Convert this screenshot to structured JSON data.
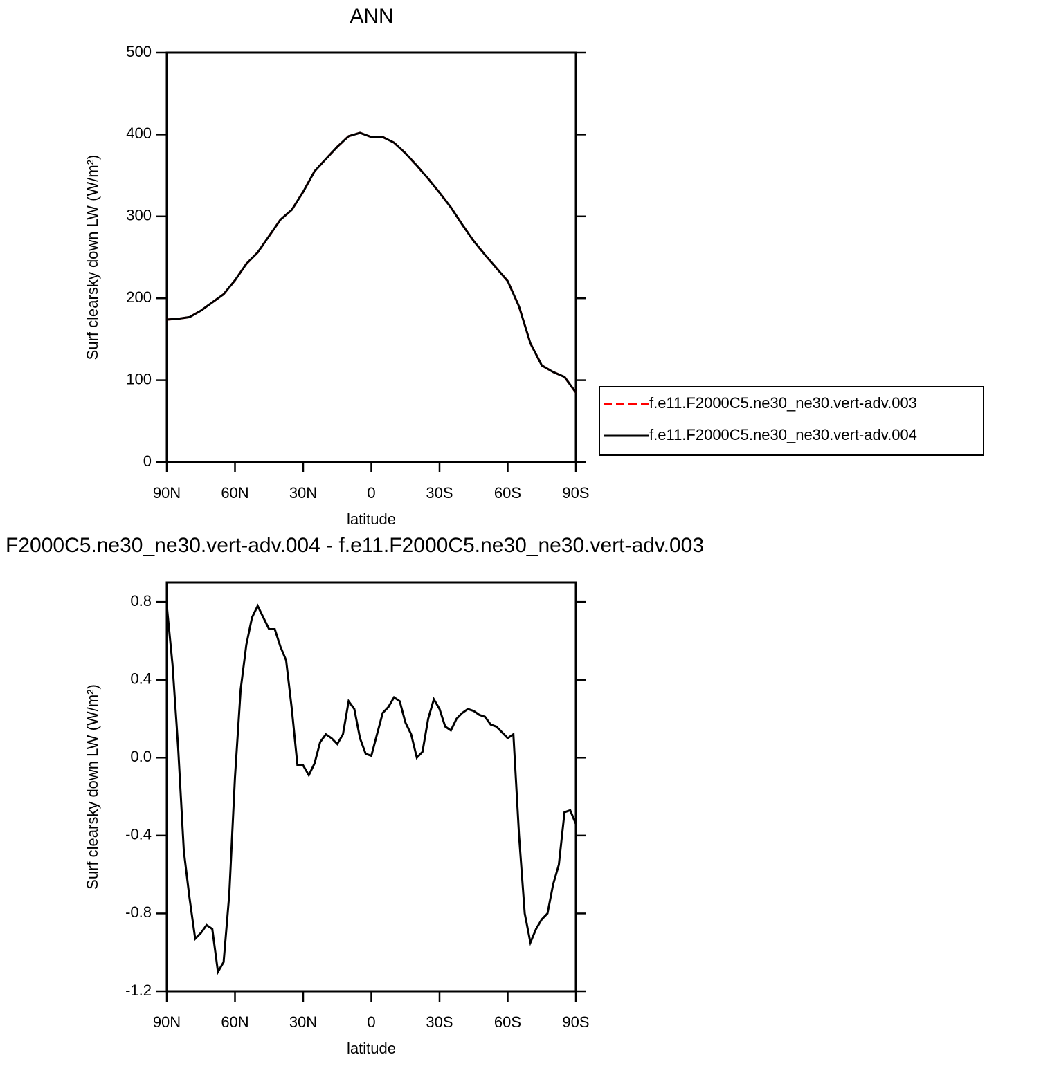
{
  "chart_data": [
    {
      "type": "line",
      "title": "ANN",
      "x_label": "latitude",
      "y_label": "Surf clearsky down LW (W/m²)",
      "xlim": [
        90,
        -90
      ],
      "ylim": [
        0,
        500
      ],
      "xticks": [
        {
          "value": 90,
          "label": "90N"
        },
        {
          "value": 60,
          "label": "60N"
        },
        {
          "value": 30,
          "label": "30N"
        },
        0,
        {
          "value": -30,
          "label": "30S"
        },
        {
          "value": -60,
          "label": "60S"
        },
        {
          "value": -90,
          "label": "90S"
        }
      ],
      "yticks": [
        0,
        100,
        200,
        300,
        400,
        500
      ],
      "legend": "right",
      "x": [
        90,
        85,
        80,
        75,
        70,
        65,
        60,
        55,
        50,
        45,
        40,
        35,
        30,
        25,
        20,
        15,
        10,
        5,
        0,
        -5,
        -10,
        -15,
        -20,
        -25,
        -30,
        -35,
        -40,
        -45,
        -50,
        -55,
        -60,
        -65,
        -70,
        -75,
        -80,
        -85,
        -90
      ],
      "series": [
        {
          "name": "f.e11.F2000C5.ne30_ne30.vert-adv.003",
          "color": "#ff0000",
          "linestyle": "dashed",
          "values": [
            174,
            175,
            177,
            185,
            195,
            205,
            222,
            242,
            256,
            276,
            296,
            308,
            330,
            355,
            370,
            385,
            398,
            402,
            397,
            397,
            390,
            377,
            362,
            346,
            329,
            311,
            290,
            270,
            253,
            237,
            221,
            190,
            145,
            118,
            110,
            104,
            85
          ]
        },
        {
          "name": "f.e11.F2000C5.ne30_ne30.vert-adv.004",
          "color": "#000000",
          "linestyle": "solid",
          "values": [
            174,
            175,
            177,
            185,
            195,
            205,
            222,
            242,
            256,
            276,
            296,
            308,
            330,
            355,
            370,
            385,
            398,
            402,
            397,
            397,
            390,
            377,
            362,
            346,
            329,
            311,
            290,
            270,
            253,
            237,
            221,
            190,
            145,
            118,
            110,
            104,
            85
          ]
        }
      ]
    },
    {
      "type": "line",
      "title": "F2000C5.ne30_ne30.vert-adv.004 - f.e11.F2000C5.ne30_ne30.vert-adv.003",
      "x_label": "latitude",
      "y_label": "Surf clearsky down LW (W/m²)",
      "xlim": [
        90,
        -90
      ],
      "ylim": [
        -1.2,
        0.9
      ],
      "xticks": [
        {
          "value": 90,
          "label": "90N"
        },
        {
          "value": 60,
          "label": "60N"
        },
        {
          "value": 30,
          "label": "30N"
        },
        0,
        {
          "value": -30,
          "label": "30S"
        },
        {
          "value": -60,
          "label": "60S"
        },
        {
          "value": -90,
          "label": "90S"
        }
      ],
      "yticks": [
        -1.2,
        -0.8,
        -0.4,
        {
          "value": 0,
          "label": "0.0"
        },
        0.4,
        0.8
      ],
      "x": [
        90,
        87.5,
        85,
        82.5,
        80,
        77.5,
        75,
        72.5,
        70,
        67.5,
        65,
        62.5,
        60,
        57.5,
        55,
        52.5,
        50,
        47.5,
        45,
        42.5,
        40,
        37.5,
        35,
        32.5,
        30,
        27.5,
        25,
        22.5,
        20,
        17.5,
        15,
        12.5,
        10,
        7.5,
        5,
        2.5,
        0,
        -2.5,
        -5,
        -7.5,
        -10,
        -12.5,
        -15,
        -17.5,
        -20,
        -22.5,
        -25,
        -27.5,
        -30,
        -32.5,
        -35,
        -37.5,
        -40,
        -42.5,
        -45,
        -47.5,
        -50,
        -52.5,
        -55,
        -57.5,
        -60,
        -62.5,
        -65,
        -67.5,
        -70,
        -72.5,
        -75,
        -77.5,
        -80,
        -82.5,
        -85,
        -87.5,
        -90
      ],
      "series": [
        {
          "color": "#000000",
          "linestyle": "solid",
          "values": [
            0.78,
            0.48,
            0.05,
            -0.48,
            -0.72,
            -0.93,
            -0.9,
            -0.86,
            -0.88,
            -1.1,
            -1.05,
            -0.7,
            -0.1,
            0.35,
            0.58,
            0.72,
            0.78,
            0.72,
            0.66,
            0.66,
            0.57,
            0.5,
            0.25,
            -0.04,
            -0.04,
            -0.09,
            -0.03,
            0.08,
            0.12,
            0.1,
            0.07,
            0.12,
            0.29,
            0.25,
            0.1,
            0.02,
            0.01,
            0.12,
            0.23,
            0.26,
            0.31,
            0.29,
            0.18,
            0.12,
            0.0,
            0.03,
            0.2,
            0.3,
            0.25,
            0.16,
            0.14,
            0.2,
            0.23,
            0.25,
            0.24,
            0.22,
            0.21,
            0.17,
            0.16,
            0.13,
            0.1,
            0.12,
            -0.4,
            -0.8,
            -0.95,
            -0.88,
            -0.83,
            -0.8,
            -0.65,
            -0.55,
            -0.28,
            -0.27,
            -0.34
          ]
        }
      ]
    }
  ]
}
